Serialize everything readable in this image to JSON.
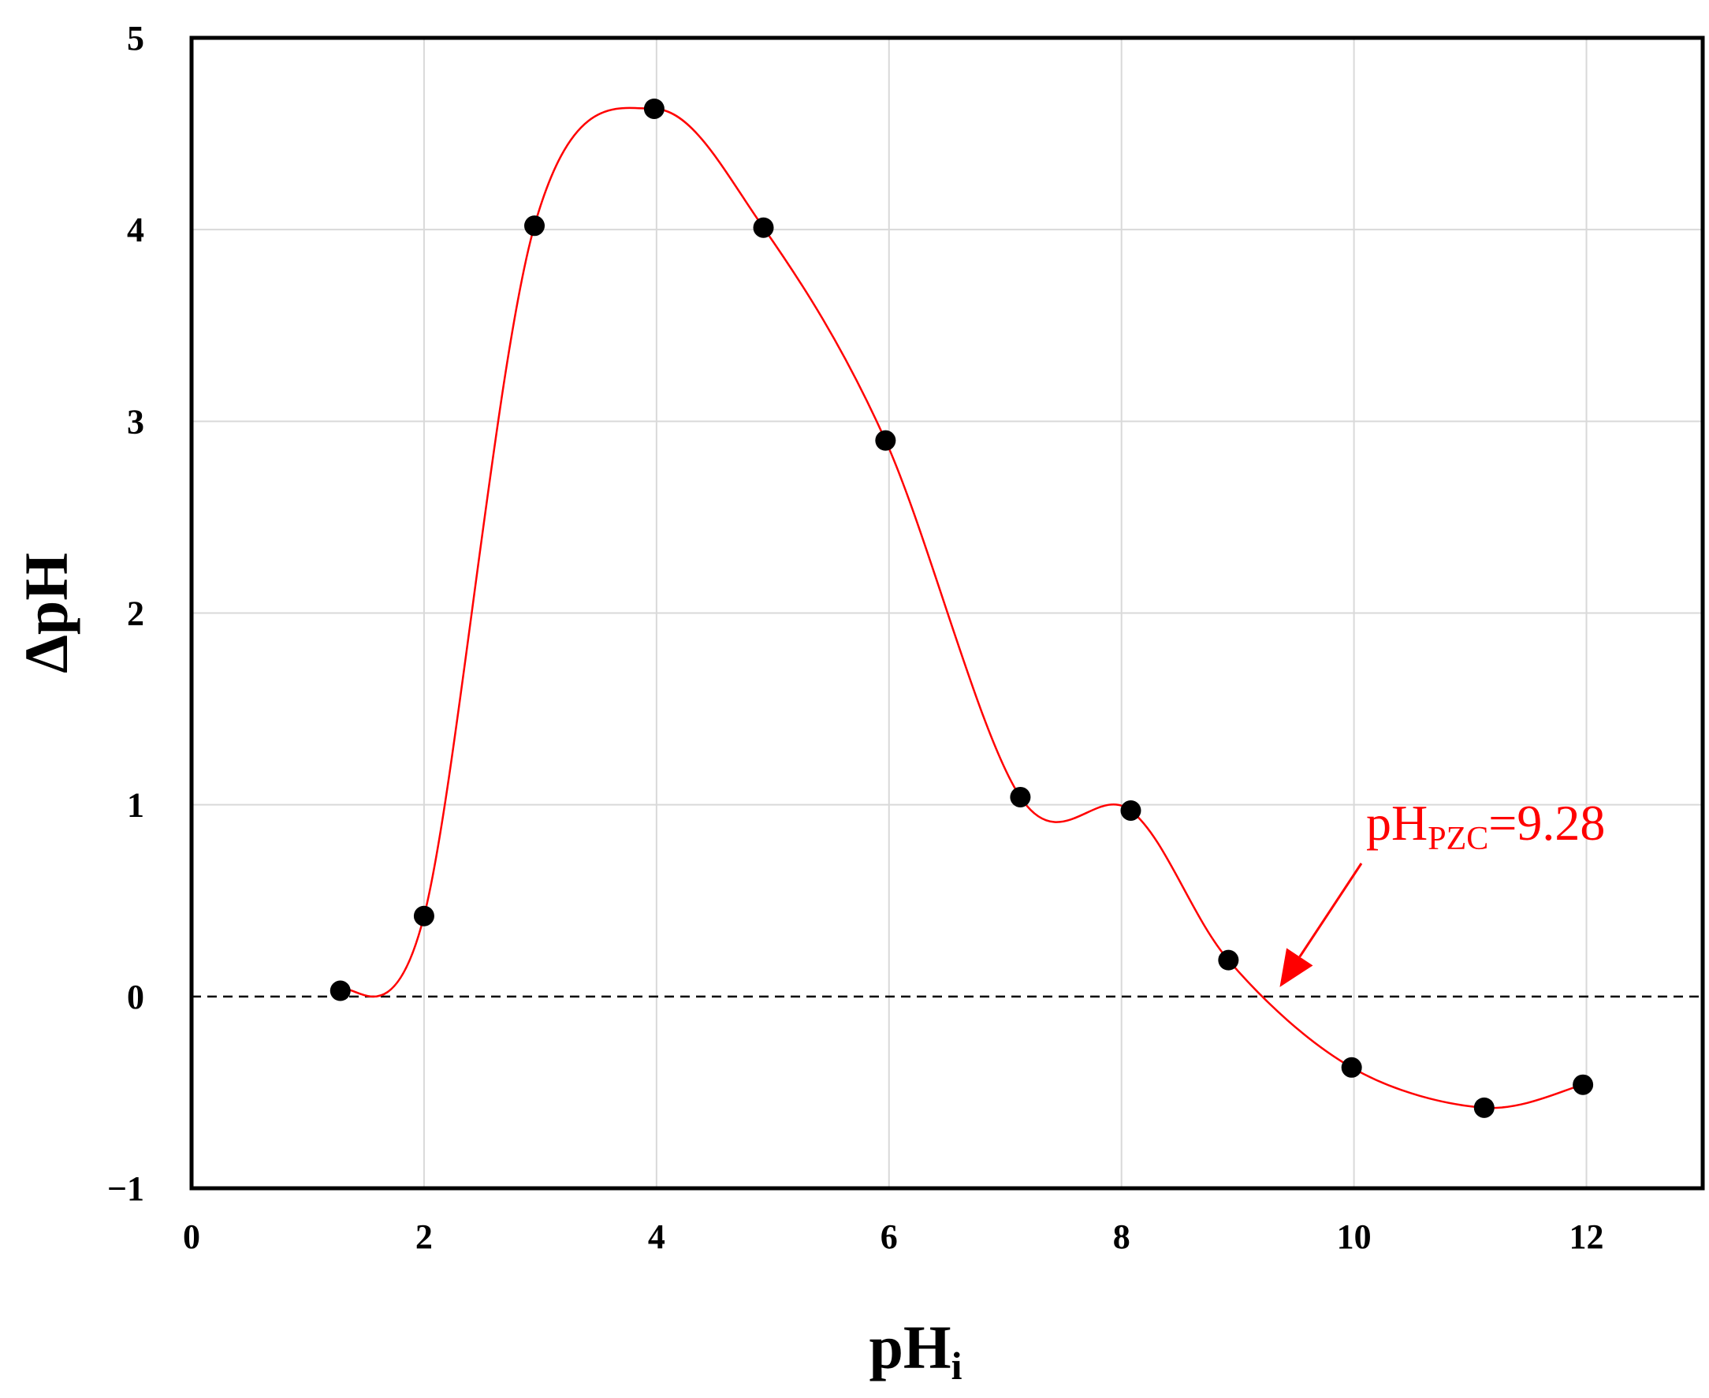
{
  "chart_data": {
    "type": "scatter",
    "title": "",
    "xlabel": {
      "main": "pH",
      "sub": "i"
    },
    "ylabel": "ΔpH",
    "xlim": [
      0,
      13
    ],
    "ylim": [
      -1,
      5
    ],
    "xticks": [
      0,
      2,
      4,
      6,
      8,
      10,
      12
    ],
    "yticks": [
      -1,
      0,
      1,
      2,
      3,
      4,
      5
    ],
    "xtick_labels": [
      "0",
      "2",
      "4",
      "6",
      "8",
      "10",
      "12"
    ],
    "ytick_labels": [
      "−1",
      "0",
      "1",
      "2",
      "3",
      "4",
      "5"
    ],
    "grid": true,
    "series": [
      {
        "marker": "circle",
        "line": "smooth",
        "marker_color": "#000000",
        "line_color": "#ff0000",
        "x": [
          1.28,
          2.0,
          2.95,
          3.98,
          4.92,
          5.97,
          7.13,
          8.08,
          8.92,
          9.98,
          11.12,
          11.97
        ],
        "y": [
          0.03,
          0.42,
          4.02,
          4.63,
          4.01,
          2.9,
          1.04,
          0.97,
          0.19,
          -0.37,
          -0.58,
          -0.46
        ]
      }
    ],
    "reference_line": {
      "y": 0,
      "style": "dashed",
      "color": "#000000"
    },
    "annotation": {
      "prefix": "pH",
      "sub": "PZC",
      "suffix": "=9.28",
      "color": "#ff0000",
      "points_to_x": 9.28,
      "points_to_y": 0
    }
  }
}
